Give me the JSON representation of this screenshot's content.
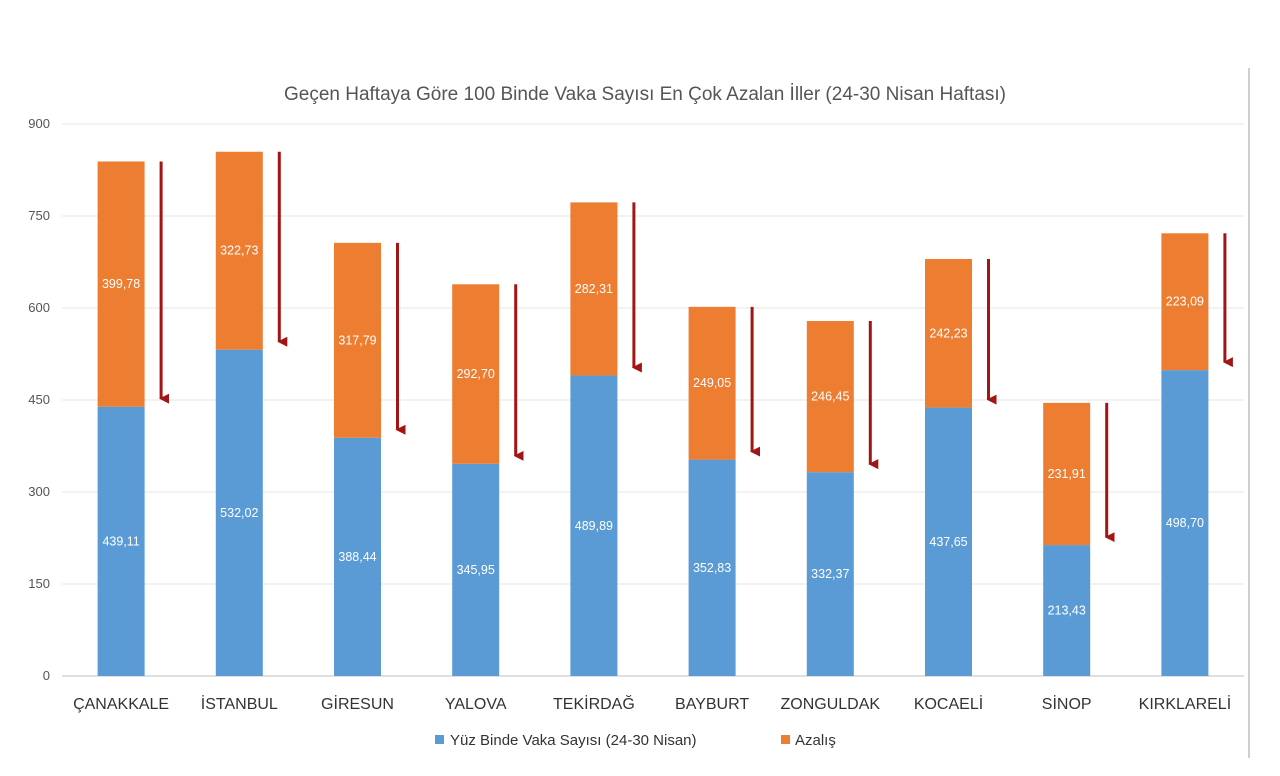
{
  "chart_data": {
    "type": "bar",
    "stacked": true,
    "title": "Geçen Haftaya Göre 100 Binde Vaka Sayısı En Çok Azalan İller (24-30 Nisan Haftası)",
    "xlabel": "",
    "ylabel": "",
    "ylim": [
      0,
      900
    ],
    "yticks": [
      "0",
      "150",
      "300",
      "450",
      "600",
      "750",
      "900"
    ],
    "ytick_values": [
      0,
      150,
      300,
      450,
      600,
      750,
      900
    ],
    "categories": [
      "ÇANAKKALE",
      "İSTANBUL",
      "GİRESUN",
      "YALOVA",
      "TEKİRDAĞ",
      "BAYBURT",
      "ZONGULDAK",
      "KOCAELİ",
      "SİNOP",
      "KIRKLARELİ"
    ],
    "series": [
      {
        "name": "Yüz Binde Vaka Sayısı (24-30 Nisan)",
        "color": "#5b9bd5",
        "values": [
          439.11,
          532.02,
          388.44,
          345.95,
          489.89,
          352.83,
          332.37,
          437.65,
          213.43,
          498.7
        ],
        "labels": [
          "439,11",
          "532,02",
          "388,44",
          "345,95",
          "489,89",
          "352,83",
          "332,37",
          "437,65",
          "213,43",
          "498,70"
        ]
      },
      {
        "name": "Azalış",
        "color": "#ed7d31",
        "values": [
          399.78,
          322.73,
          317.79,
          292.7,
          282.31,
          249.05,
          246.45,
          242.23,
          231.91,
          223.09
        ],
        "labels": [
          "399,78",
          "322,73",
          "317,79",
          "292,70",
          "282,31",
          "249,05",
          "246,45",
          "242,23",
          "231,91",
          "223,09"
        ]
      }
    ],
    "arrow_color": "#a31515",
    "grid": true,
    "legend": "bottom"
  }
}
